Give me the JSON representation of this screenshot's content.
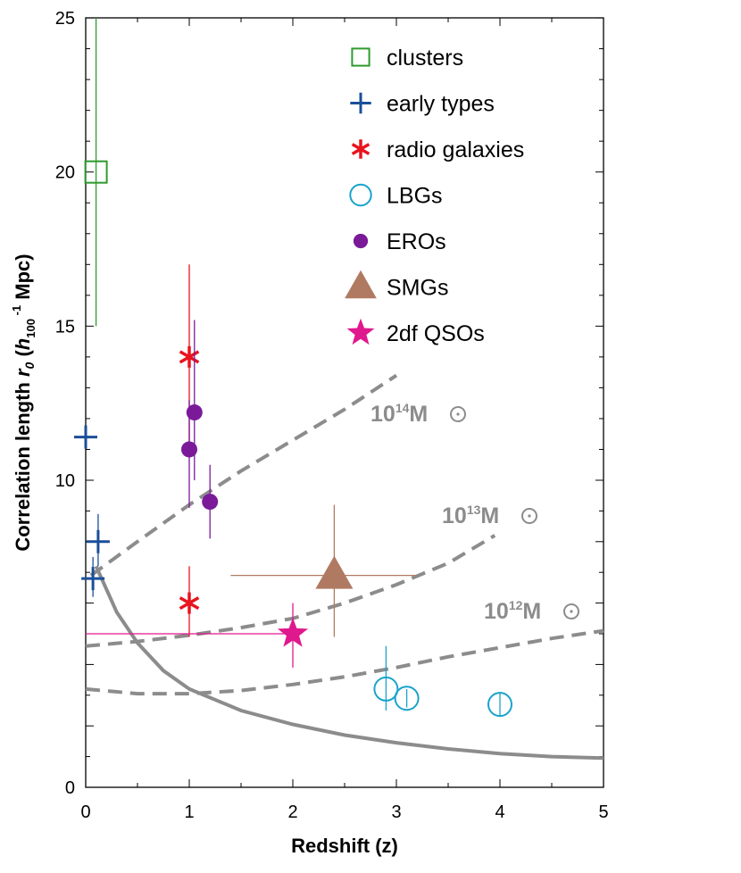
{
  "chart_data": {
    "type": "scatter",
    "xlabel": "Redshift (z)",
    "ylabel": {
      "main": "Correlation length ",
      "r": "r",
      "sub0": "0",
      "open": " (",
      "h": "h",
      "sub100": "100",
      "sup": " -1",
      "unit": " Mpc)"
    },
    "xlim": [
      0,
      5
    ],
    "ylim": [
      0,
      25
    ],
    "xticks": [
      "0",
      "1",
      "2",
      "3",
      "4",
      "5"
    ],
    "yticks": [
      "0",
      "10",
      "15",
      "20",
      "25"
    ],
    "colors": {
      "clusters": "#2e9b2e",
      "early": "#1a4f99",
      "radio": "#e8141e",
      "lbg": "#1aa3cc",
      "ero": "#7a1a99",
      "smg": "#b07a62",
      "qso": "#e0188e",
      "model": "#8c8c8c",
      "line": "#7f7f7f"
    },
    "legend": [
      {
        "name": "clusters",
        "key": "clusters"
      },
      {
        "name": "early types",
        "key": "early"
      },
      {
        "name": "radio galaxies",
        "key": "radio"
      },
      {
        "name": "LBGs",
        "key": "lbg"
      },
      {
        "name": "EROs",
        "key": "ero"
      },
      {
        "name": "SMGs",
        "key": "smg"
      },
      {
        "name": "2df QSOs",
        "key": "qso"
      }
    ],
    "series": [
      {
        "name": "clusters",
        "marker": "square",
        "points": [
          {
            "x": 0.1,
            "y": 20.0,
            "ylo": 15.0,
            "yhi": 25.0
          }
        ]
      },
      {
        "name": "early types",
        "marker": "plus",
        "points": [
          {
            "x": 0.0,
            "y": 11.4
          },
          {
            "x": 0.12,
            "y": 8.0,
            "ylo": 7.2,
            "yhi": 8.9
          },
          {
            "x": 0.07,
            "y": 6.8,
            "ylo": 6.2,
            "yhi": 7.5
          }
        ]
      },
      {
        "name": "radio galaxies",
        "marker": "asterisk",
        "points": [
          {
            "x": 1.0,
            "y": 14.0,
            "ylo": 11.0,
            "yhi": 17.0
          },
          {
            "x": 1.0,
            "y": 6.0,
            "ylo": 4.9,
            "yhi": 7.2
          }
        ]
      },
      {
        "name": "LBGs",
        "marker": "circle",
        "points": [
          {
            "x": 2.9,
            "y": 3.2,
            "ylo": 2.5,
            "yhi": 4.6
          },
          {
            "x": 3.1,
            "y": 2.9,
            "ylo": 2.6,
            "yhi": 3.2
          },
          {
            "x": 4.0,
            "y": 2.7,
            "ylo": 2.3,
            "yhi": 3.1
          }
        ]
      },
      {
        "name": "EROs",
        "marker": "dot",
        "points": [
          {
            "x": 1.05,
            "y": 12.2,
            "ylo": 10.0,
            "yhi": 15.2
          },
          {
            "x": 1.0,
            "y": 11.0,
            "ylo": 9.1,
            "yhi": 12.6
          },
          {
            "x": 1.2,
            "y": 9.3,
            "ylo": 8.1,
            "yhi": 10.5
          }
        ]
      },
      {
        "name": "SMGs",
        "marker": "triangle",
        "points": [
          {
            "x": 2.4,
            "y": 6.9,
            "xlo": 1.4,
            "xhi": 3.2,
            "ylo": 4.9,
            "yhi": 9.2
          }
        ]
      },
      {
        "name": "2df QSOs",
        "marker": "star",
        "points": [
          {
            "x": 2.0,
            "y": 5.0,
            "ylo": 3.9,
            "yhi": 6.0,
            "xlo": 0.0,
            "xhi": 2.0
          }
        ]
      }
    ],
    "model_curves": [
      {
        "label": {
          "base": "10",
          "exp": "14",
          "unit": "M"
        },
        "dashed": true,
        "x": [
          0.05,
          0.5,
          1.0,
          1.5,
          2.0,
          2.5,
          3.0
        ],
        "y": [
          6.9,
          8.0,
          9.2,
          10.3,
          11.3,
          12.3,
          13.4
        ]
      },
      {
        "label": {
          "base": "10",
          "exp": "13",
          "unit": "M"
        },
        "dashed": true,
        "x": [
          0.0,
          0.5,
          1.0,
          1.5,
          2.0,
          2.5,
          3.0,
          3.5,
          3.95
        ],
        "y": [
          4.6,
          4.75,
          4.95,
          5.2,
          5.5,
          6.0,
          6.6,
          7.3,
          8.2
        ]
      },
      {
        "label": {
          "base": "10",
          "exp": "12",
          "unit": "M"
        },
        "dashed": true,
        "x": [
          0.0,
          0.5,
          1.0,
          1.5,
          2.0,
          2.5,
          3.0,
          3.5,
          4.0,
          4.5,
          5.0
        ],
        "y": [
          3.2,
          3.05,
          3.05,
          3.15,
          3.35,
          3.6,
          3.9,
          4.25,
          4.55,
          4.85,
          5.1
        ]
      },
      {
        "label": null,
        "dashed": false,
        "x": [
          0.1,
          0.3,
          0.5,
          0.75,
          1.0,
          1.5,
          2.0,
          2.5,
          3.0,
          3.5,
          4.0,
          4.5,
          5.0
        ],
        "y": [
          7.2,
          5.7,
          4.7,
          3.8,
          3.2,
          2.5,
          2.05,
          1.7,
          1.45,
          1.25,
          1.1,
          1.0,
          0.95
        ]
      }
    ]
  }
}
